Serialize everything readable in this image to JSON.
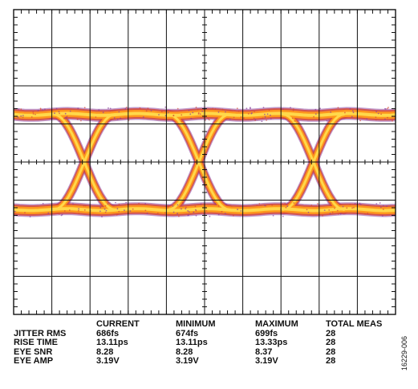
{
  "chart_data": {
    "type": "eye-diagram",
    "title": "",
    "xlabel": "",
    "ylabel": "",
    "grid": true,
    "grid_divisions": {
      "horizontal": 10,
      "vertical": 8
    },
    "eye_crossings": 3,
    "colors": {
      "eye_core": "#ffd84a",
      "eye_mid": "#ff9a1a",
      "eye_edge": "#d64a38",
      "eye_fringe": "#8a3e9c",
      "grid": "#111111"
    }
  },
  "measurements": {
    "headers": [
      "CURRENT",
      "MINIMUM",
      "MAXIMUM",
      "TOTAL MEAS"
    ],
    "rows": [
      {
        "label": "JITTER RMS",
        "values": [
          "686fs",
          "674fs",
          "699fs",
          "28"
        ]
      },
      {
        "label": "RISE TIME",
        "values": [
          "13.11ps",
          "13.11ps",
          "13.33ps",
          "28"
        ]
      },
      {
        "label": "EYE SNR",
        "values": [
          "8.28",
          "8.28",
          "8.37",
          "28"
        ]
      },
      {
        "label": "EYE AMP",
        "values": [
          "3.19V",
          "3.19V",
          "3.19V",
          "28"
        ]
      }
    ]
  },
  "figure_id": "16229-006"
}
